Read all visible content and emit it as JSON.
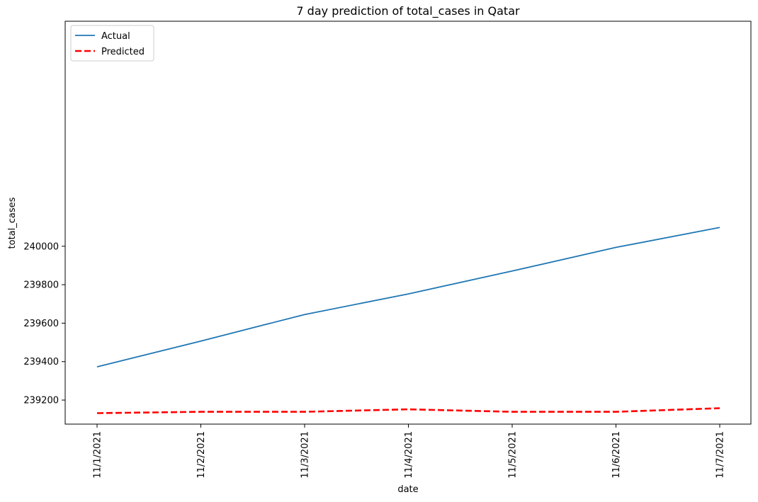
{
  "chart_data": {
    "type": "line",
    "title": "7 day prediction of total_cases in Qatar",
    "xlabel": "date",
    "ylabel": "total_cases",
    "categories": [
      "11/1/2021",
      "11/2/2021",
      "11/3/2021",
      "11/4/2021",
      "11/5/2021",
      "11/6/2021",
      "11/7/2021"
    ],
    "yticks": [
      239200,
      239400,
      239600,
      239800,
      240000
    ],
    "ylim": [
      239075,
      241170
    ],
    "grid": false,
    "legend_position": "top-left",
    "series": [
      {
        "name": "Actual",
        "color": "#1f77b4",
        "style": "solid",
        "values": [
          239373,
          239507,
          239645,
          239752,
          239871,
          239994,
          240098
        ]
      },
      {
        "name": "Predicted",
        "color": "#ff0000",
        "style": "dashed",
        "values": [
          239132,
          239139,
          239139,
          239152,
          239139,
          239139,
          239158
        ]
      }
    ]
  }
}
